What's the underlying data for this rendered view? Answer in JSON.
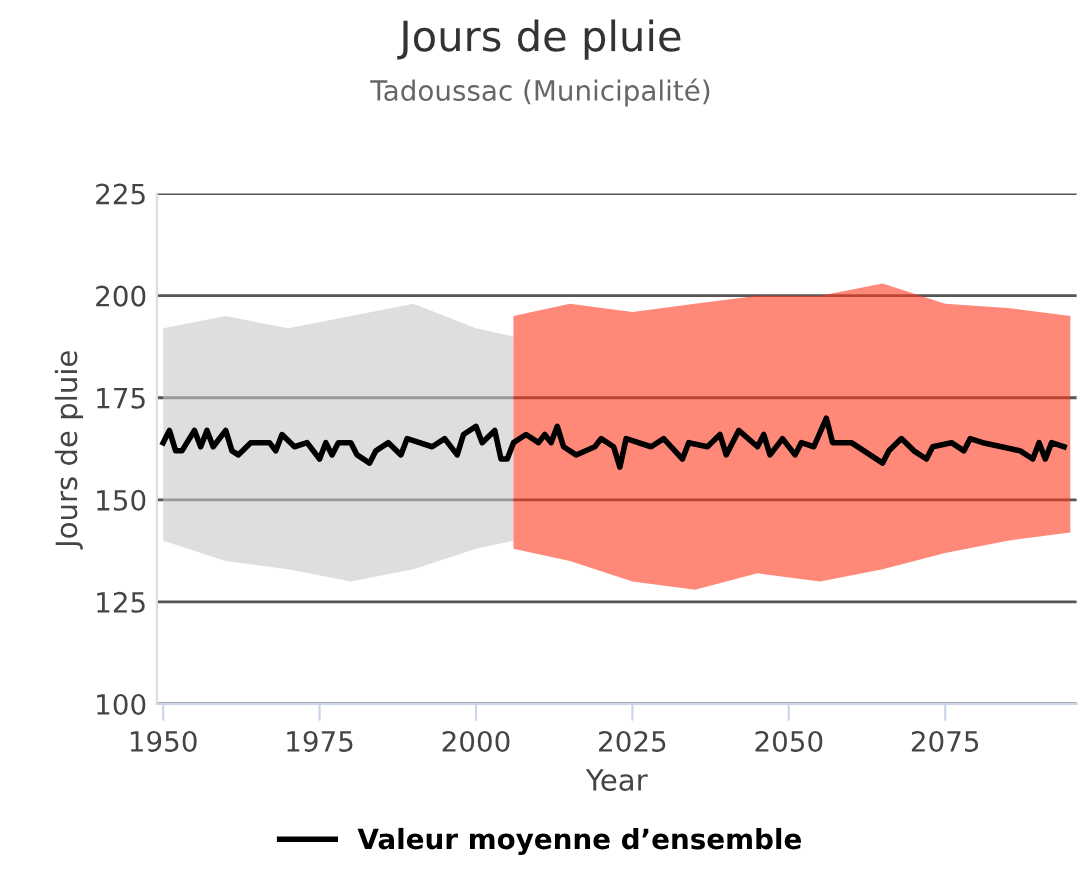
{
  "chart_data": {
    "type": "line",
    "title": "Jours de pluie",
    "subtitle": "Tadoussac (Municipalité)",
    "xlabel": "Year",
    "ylabel": "Jours de pluie",
    "xlim": [
      1949,
      2096
    ],
    "xticks": [
      1950,
      1975,
      2000,
      2025,
      2050,
      2075
    ],
    "ylim": [
      100,
      225
    ],
    "yticks": [
      100,
      125,
      150,
      175,
      200,
      225
    ],
    "grid": "y",
    "legend": "bottom",
    "marker": "none",
    "line_style": "solid",
    "series": [
      {
        "type": "area",
        "color": "#c8c8c8",
        "x": [
          1950,
          1960,
          1970,
          1980,
          1990,
          2000,
          2006
        ],
        "values": [
          null,
          null,
          null,
          null,
          null,
          null,
          null
        ],
        "lower": [
          140,
          135,
          133,
          130,
          133,
          138,
          140
        ],
        "upper": [
          192,
          195,
          192,
          195,
          198,
          192,
          190
        ]
      },
      {
        "type": "area",
        "color": "#ff3a1f",
        "x": [
          2006,
          2015,
          2025,
          2035,
          2045,
          2055,
          2065,
          2075,
          2085,
          2095
        ],
        "values": [
          null,
          null,
          null,
          null,
          null,
          null,
          null,
          null,
          null,
          null
        ],
        "lower": [
          138,
          135,
          130,
          128,
          132,
          130,
          133,
          137,
          140,
          142
        ],
        "upper": [
          195,
          198,
          196,
          198,
          200,
          200,
          203,
          198,
          197,
          195
        ]
      },
      {
        "name": "Valeur moyenne d’ensemble",
        "color": "#000000",
        "x": [
          1950,
          1951,
          1952,
          1953,
          1955,
          1956,
          1957,
          1958,
          1960,
          1961,
          1962,
          1964,
          1967,
          1968,
          1969,
          1971,
          1973,
          1975,
          1976,
          1977,
          1978,
          1980,
          1981,
          1983,
          1984,
          1986,
          1988,
          1989,
          1993,
          1995,
          1997,
          1998,
          2000,
          2001,
          2003,
          2004,
          2005,
          2006,
          2008,
          2010,
          2011,
          2012,
          2013,
          2014,
          2016,
          2019,
          2020,
          2022,
          2023,
          2024,
          2028,
          2030,
          2033,
          2034,
          2037,
          2039,
          2040,
          2042,
          2045,
          2046,
          2047,
          2049,
          2051,
          2052,
          2054,
          2056,
          2057,
          2060,
          2063,
          2065,
          2066,
          2068,
          2070,
          2072,
          2073,
          2076,
          2078,
          2079,
          2081,
          2084,
          2087,
          2089,
          2090,
          2091,
          2092,
          2094
        ],
        "values": [
          164,
          167,
          162,
          162,
          167,
          163,
          167,
          163,
          167,
          162,
          161,
          164,
          164,
          162,
          166,
          163,
          164,
          160,
          164,
          161,
          164,
          164,
          161,
          159,
          162,
          164,
          161,
          165,
          163,
          165,
          161,
          166,
          168,
          164,
          167,
          160,
          160,
          164,
          166,
          164,
          166,
          164,
          168,
          163,
          161,
          163,
          165,
          163,
          158,
          165,
          163,
          165,
          160,
          164,
          163,
          166,
          161,
          167,
          163,
          166,
          161,
          165,
          161,
          164,
          163,
          170,
          164,
          164,
          161,
          159,
          162,
          165,
          162,
          160,
          163,
          164,
          162,
          165,
          164,
          163,
          162,
          160,
          164,
          160,
          164,
          163
        ]
      }
    ]
  }
}
